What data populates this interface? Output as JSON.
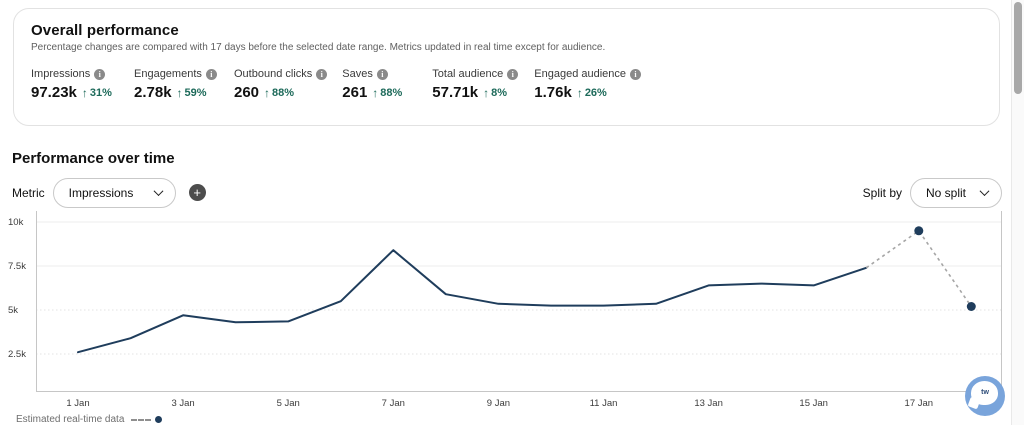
{
  "overall": {
    "title": "Overall performance",
    "subtitle": "Percentage changes are compared with 17 days before the selected date range. Metrics updated in real time except for audience.",
    "metrics": [
      {
        "label": "Impressions",
        "value": "97.23k",
        "change": "31%",
        "direction": "up"
      },
      {
        "label": "Engagements",
        "value": "2.78k",
        "change": "59%",
        "direction": "up"
      },
      {
        "label": "Outbound clicks",
        "value": "260",
        "change": "88%",
        "direction": "up"
      },
      {
        "label": "Saves",
        "value": "261",
        "change": "88%",
        "direction": "up"
      },
      {
        "label": "Total audience",
        "value": "57.71k",
        "change": "8%",
        "direction": "up"
      },
      {
        "label": "Engaged audience",
        "value": "1.76k",
        "change": "26%",
        "direction": "up"
      }
    ]
  },
  "performance": {
    "title": "Performance over time",
    "metric_label": "Metric",
    "metric_value": "Impressions",
    "split_by_label": "Split by",
    "split_by_value": "No split",
    "legend_estimated": "Estimated real-time data"
  },
  "icons": {
    "up_arrow": "↑",
    "plus": "+",
    "info": "i"
  },
  "widget": {
    "label": "tw"
  },
  "colors": {
    "positive_change": "#1d6a5a",
    "line": "#1f3d5c",
    "estimated": "#a6a6a6"
  },
  "chart_data": {
    "type": "line",
    "title": "Performance over time",
    "metric": "Impressions",
    "ylim": [
      0,
      10000
    ],
    "y_tick_values": [
      10000,
      7500,
      5000,
      2500
    ],
    "y_tick_labels": [
      "10k",
      "7.5k",
      "5k",
      "2.5k"
    ],
    "x_tick_days": [
      1,
      3,
      5,
      7,
      9,
      11,
      13,
      15,
      17
    ],
    "x_tick_labels": [
      "1 Jan",
      "3 Jan",
      "5 Jan",
      "7 Jan",
      "9 Jan",
      "11 Jan",
      "13 Jan",
      "15 Jan",
      "17 Jan"
    ],
    "grid": "horizontal",
    "series": [
      {
        "name": "Impressions",
        "style": "solid",
        "days": [
          1,
          2,
          3,
          4,
          5,
          6,
          7,
          8,
          9,
          10,
          11,
          12,
          13,
          14,
          15,
          16
        ],
        "values": [
          2600,
          3400,
          4700,
          4300,
          4350,
          5500,
          8400,
          5900,
          5350,
          5250,
          5250,
          5350,
          6400,
          6500,
          6400,
          7400
        ]
      },
      {
        "name": "Estimated real-time data",
        "style": "dashed-dots",
        "days": [
          16,
          17,
          18
        ],
        "values": [
          7400,
          9500,
          5200
        ],
        "dot_days": [
          17,
          18
        ]
      }
    ],
    "colors": {
      "line": "#1f3d5c",
      "estimated": "#a6a6a6"
    }
  }
}
